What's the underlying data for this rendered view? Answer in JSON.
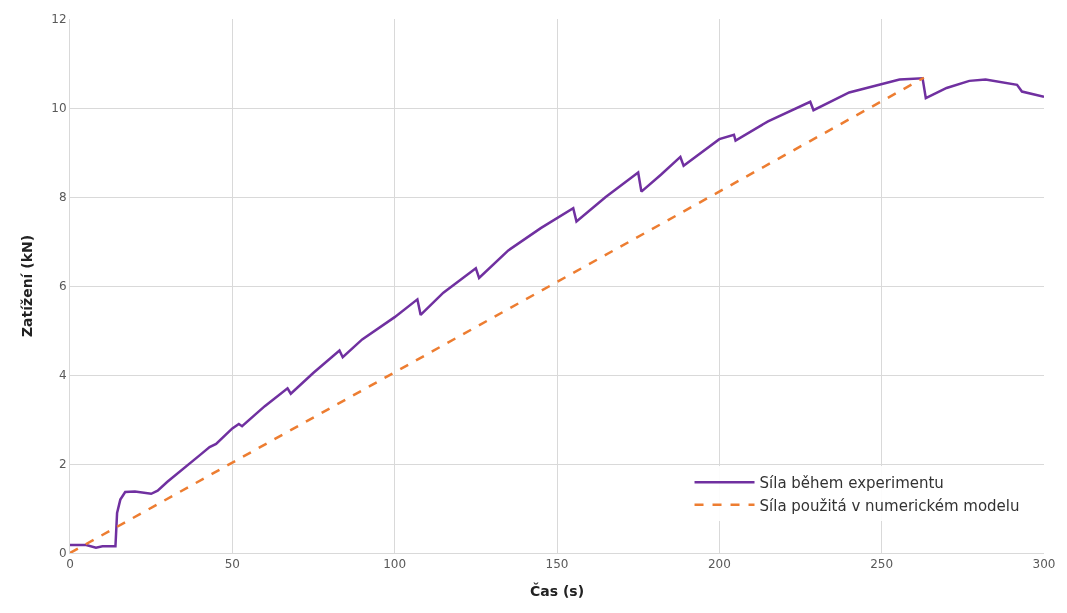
{
  "chart_data": {
    "type": "line",
    "xlabel": "Čas (s)",
    "ylabel": "Zatížení (kN)",
    "xlim": [
      0,
      300
    ],
    "xticks": [
      0,
      50,
      100,
      150,
      200,
      250,
      300
    ],
    "ylim": [
      0,
      12
    ],
    "yticks": [
      0,
      2,
      4,
      6,
      8,
      10,
      12
    ],
    "grid": true,
    "legend": "bottom right",
    "series": [
      {
        "name": "Síla během experimentu",
        "color": "#7030a0",
        "line_style": "solid",
        "x": [
          0,
          5,
          8,
          10,
          14,
          14.5,
          15.5,
          17,
          20,
          25,
          27,
          30,
          40,
          43,
          45,
          50,
          52,
          53,
          60,
          67,
          68,
          75,
          83,
          84,
          90,
          100,
          107,
          108,
          115,
          125,
          126,
          135,
          145,
          155,
          156,
          165,
          175,
          176,
          182,
          188,
          189,
          200,
          204.5,
          205,
          215,
          228,
          229,
          240,
          255.5,
          262.6,
          263.6,
          270,
          277,
          282,
          291.7,
          293.2,
          300
        ],
        "values": [
          0.18,
          0.18,
          0.12,
          0.15,
          0.15,
          0.9,
          1.2,
          1.37,
          1.38,
          1.33,
          1.4,
          1.6,
          2.2,
          2.38,
          2.45,
          2.8,
          2.9,
          2.85,
          3.3,
          3.7,
          3.58,
          4.05,
          4.55,
          4.4,
          4.8,
          5.3,
          5.7,
          5.35,
          5.85,
          6.4,
          6.18,
          6.8,
          7.3,
          7.75,
          7.45,
          8.0,
          8.55,
          8.12,
          8.5,
          8.9,
          8.7,
          9.3,
          9.4,
          9.27,
          9.7,
          10.14,
          9.95,
          10.35,
          10.64,
          10.67,
          10.22,
          10.45,
          10.61,
          10.64,
          10.52,
          10.37,
          10.25
        ]
      },
      {
        "name": "Síla použitá v numerickém modelu",
        "color": "#ed7d31",
        "line_style": "dashed",
        "x": [
          0,
          263
        ],
        "values": [
          0,
          10.68
        ]
      }
    ]
  }
}
